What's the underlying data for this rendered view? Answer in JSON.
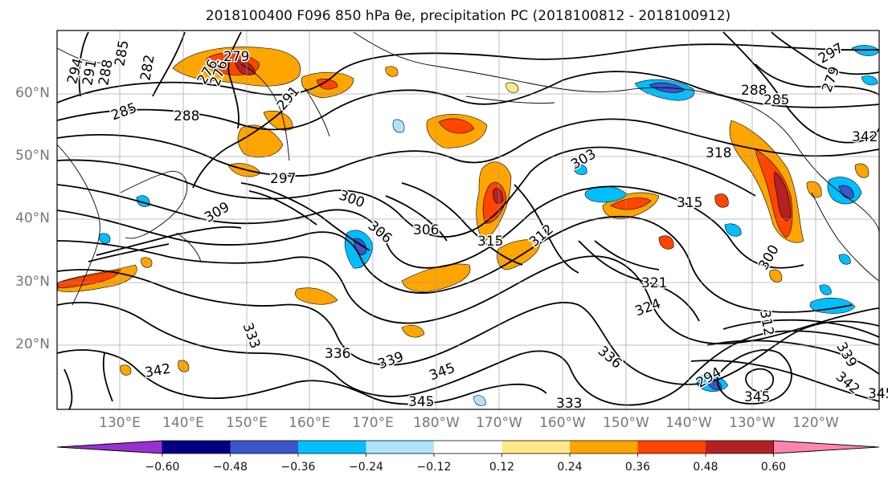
{
  "title": "2018100400 F096 850 hPa θe, precipitation PC (2018100812 - 2018100912)",
  "latitude_labels": [
    "60°N",
    "50°N",
    "40°N",
    "30°N",
    "20°N"
  ],
  "longitude_labels": [
    "130°E",
    "140°E",
    "150°E",
    "160°E",
    "170°E",
    "180°W",
    "170°W",
    "160°W",
    "150°W",
    "140°W",
    "130°W",
    "120°W"
  ],
  "colorbar": {
    "tick_labels": [
      "−0.60",
      "−0.48",
      "−0.36",
      "−0.24",
      "−0.12",
      "0.12",
      "0.24",
      "0.36",
      "0.48",
      "0.60"
    ],
    "colors": [
      "#9b30d0",
      "#000080",
      "#3a56c8",
      "#00bfff",
      "#aee4fb",
      "#ffffff",
      "#fde98a",
      "#ffa500",
      "#ff4500",
      "#b22222",
      "#ff85b0"
    ]
  },
  "contour_labels": [
    "294",
    "291",
    "288",
    "285",
    "282",
    "279",
    "276",
    "285",
    "288",
    "297",
    "300",
    "306",
    "309",
    "291",
    "315",
    "318",
    "303",
    "312",
    "315",
    "321",
    "324",
    "333",
    "336",
    "339",
    "342",
    "345",
    "345",
    "333",
    "336",
    "342",
    "345",
    "339",
    "294",
    "297",
    "288",
    "285",
    "279",
    "300",
    "342",
    "345",
    "312",
    "306",
    "276"
  ],
  "shading_colors": {
    "positive_light": "#fde98a",
    "positive_mid": "#ffa500",
    "positive_strong": "#ff4500",
    "positive_max": "#b22222",
    "negative_light": "#aee4fb",
    "negative_mid": "#00bfff",
    "negative_strong": "#3a56c8"
  }
}
